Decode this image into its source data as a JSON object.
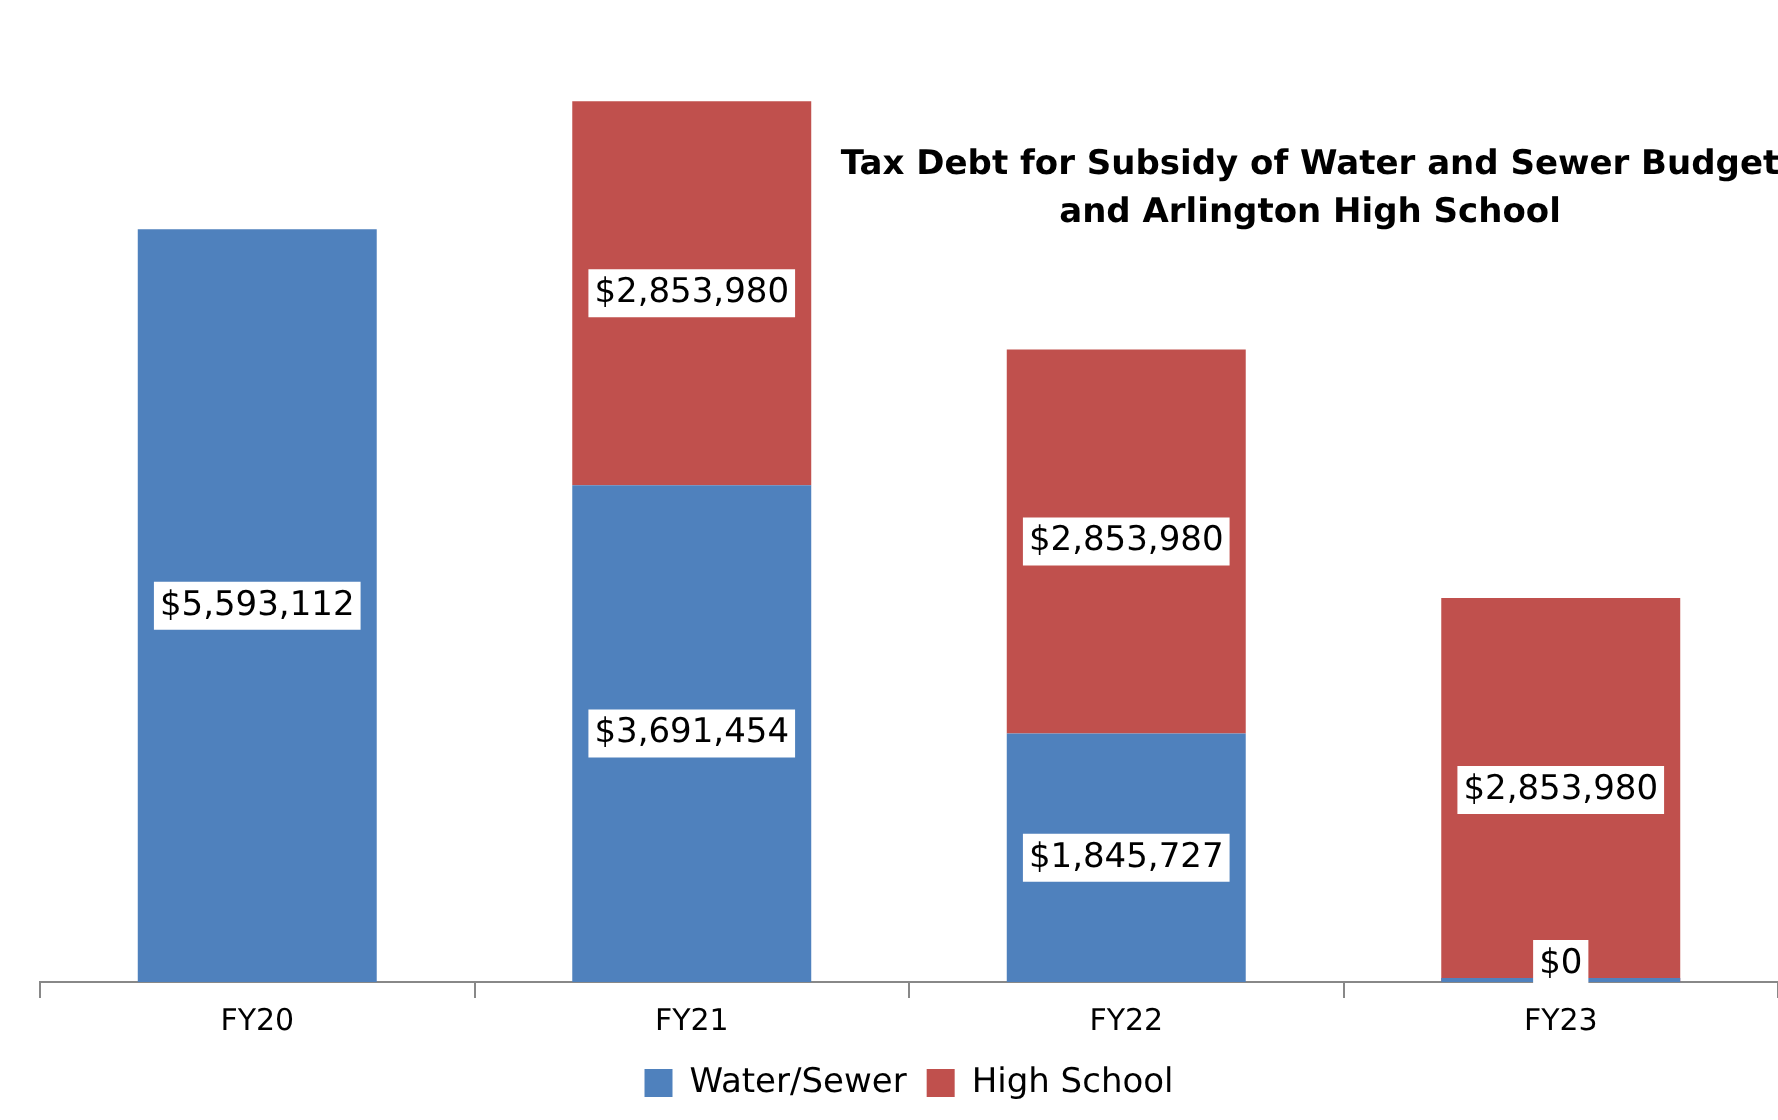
{
  "chart_data": {
    "type": "bar",
    "title": "Tax Debt for Subsidy of Water and Sewer Budget and Arlington High School",
    "categories": [
      "FY20",
      "FY21",
      "FY22",
      "FY23"
    ],
    "stacked": true,
    "legend": "bottom",
    "grid": false,
    "series": [
      {
        "name": "Water/Sewer",
        "color": "#4f81bd",
        "values": [
          5593112,
          3691454,
          1845727,
          0
        ],
        "value_labels": [
          "$5,593,112",
          "$3,691,454",
          "$1,845,727",
          "$0"
        ]
      },
      {
        "name": "High School",
        "color": "#c0504d",
        "values": [
          null,
          2853980,
          2853980,
          2853980
        ],
        "value_labels": [
          null,
          "$2,853,980",
          "$2,853,980",
          "$2,853,980"
        ]
      }
    ]
  }
}
